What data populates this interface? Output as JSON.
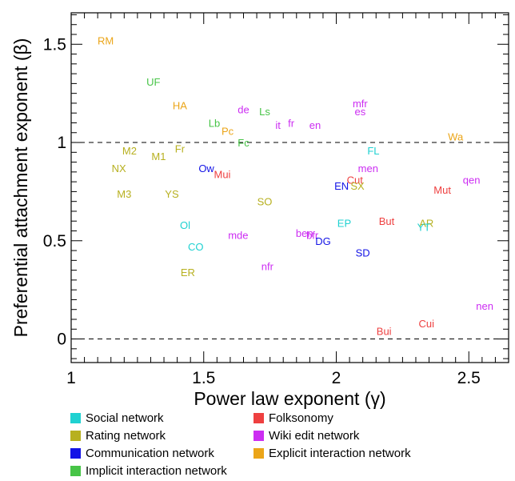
{
  "chart_data": {
    "type": "scatter",
    "xlabel": "Power law exponent (γ)",
    "ylabel": "Preferential attachment exponent (β)",
    "xlim": [
      1,
      2.65
    ],
    "ylim": [
      -0.12,
      1.66
    ],
    "xticks": [
      {
        "v": 1,
        "label": "1"
      },
      {
        "v": 1.5,
        "label": "1.5"
      },
      {
        "v": 2,
        "label": "2"
      },
      {
        "v": 2.5,
        "label": "2.5"
      }
    ],
    "yticks": [
      {
        "v": 0,
        "label": "0"
      },
      {
        "v": 0.5,
        "label": "0.5"
      },
      {
        "v": 1,
        "label": "1"
      },
      {
        "v": 1.5,
        "label": "1.5"
      }
    ],
    "reference_lines_y": [
      0,
      1
    ],
    "legend": {
      "placement": "bottom",
      "entries": [
        {
          "key": "social",
          "label": "Social network",
          "color": "#1fd1d1"
        },
        {
          "key": "folksonomy",
          "label": "Folksonomy",
          "color": "#ee4040"
        },
        {
          "key": "rating",
          "label": "Rating network",
          "color": "#b7b01f"
        },
        {
          "key": "wiki",
          "label": "Wiki edit network",
          "color": "#cc2df2"
        },
        {
          "key": "communication",
          "label": "Communication network",
          "color": "#1414e6"
        },
        {
          "key": "explicit",
          "label": "Explicit interaction network",
          "color": "#eba518"
        },
        {
          "key": "implicit",
          "label": "Implicit interaction network",
          "color": "#47c447"
        }
      ]
    },
    "points": [
      {
        "label": "RM",
        "x": 1.13,
        "y": 1.52,
        "cat": "explicit"
      },
      {
        "label": "UF",
        "x": 1.31,
        "y": 1.31,
        "cat": "implicit"
      },
      {
        "label": "HA",
        "x": 1.41,
        "y": 1.19,
        "cat": "explicit"
      },
      {
        "label": "de",
        "x": 1.65,
        "y": 1.17,
        "cat": "wiki"
      },
      {
        "label": "Ls",
        "x": 1.73,
        "y": 1.16,
        "cat": "implicit"
      },
      {
        "label": "Lb",
        "x": 1.54,
        "y": 1.1,
        "cat": "implicit"
      },
      {
        "label": "Pc",
        "x": 1.59,
        "y": 1.06,
        "cat": "explicit"
      },
      {
        "label": "it",
        "x": 1.78,
        "y": 1.09,
        "cat": "wiki"
      },
      {
        "label": "fr",
        "x": 1.83,
        "y": 1.1,
        "cat": "wiki"
      },
      {
        "label": "en",
        "x": 1.92,
        "y": 1.09,
        "cat": "wiki"
      },
      {
        "label": "mfr",
        "x": 2.09,
        "y": 1.2,
        "cat": "wiki"
      },
      {
        "label": "es",
        "x": 2.09,
        "y": 1.16,
        "cat": "wiki"
      },
      {
        "label": "Fc",
        "x": 1.65,
        "y": 1.0,
        "cat": "implicit"
      },
      {
        "label": "Wa",
        "x": 2.45,
        "y": 1.03,
        "cat": "explicit"
      },
      {
        "label": "M2",
        "x": 1.22,
        "y": 0.96,
        "cat": "rating"
      },
      {
        "label": "Fr",
        "x": 1.41,
        "y": 0.97,
        "cat": "rating"
      },
      {
        "label": "M1",
        "x": 1.33,
        "y": 0.93,
        "cat": "rating"
      },
      {
        "label": "FL",
        "x": 2.14,
        "y": 0.96,
        "cat": "social"
      },
      {
        "label": "NX",
        "x": 1.18,
        "y": 0.87,
        "cat": "rating"
      },
      {
        "label": "Ow",
        "x": 1.51,
        "y": 0.87,
        "cat": "communication"
      },
      {
        "label": "Mui",
        "x": 1.57,
        "y": 0.84,
        "cat": "folksonomy"
      },
      {
        "label": "men",
        "x": 2.12,
        "y": 0.87,
        "cat": "wiki"
      },
      {
        "label": "Cut",
        "x": 2.07,
        "y": 0.81,
        "cat": "folksonomy"
      },
      {
        "label": "EN",
        "x": 2.02,
        "y": 0.78,
        "cat": "communication"
      },
      {
        "label": "SX",
        "x": 2.08,
        "y": 0.78,
        "cat": "rating"
      },
      {
        "label": "qen",
        "x": 2.51,
        "y": 0.81,
        "cat": "wiki"
      },
      {
        "label": "M3",
        "x": 1.2,
        "y": 0.74,
        "cat": "rating"
      },
      {
        "label": "YS",
        "x": 1.38,
        "y": 0.74,
        "cat": "rating"
      },
      {
        "label": "SO",
        "x": 1.73,
        "y": 0.7,
        "cat": "rating"
      },
      {
        "label": "Mut",
        "x": 2.4,
        "y": 0.76,
        "cat": "folksonomy"
      },
      {
        "label": "Ol",
        "x": 1.43,
        "y": 0.58,
        "cat": "social"
      },
      {
        "label": "EP",
        "x": 2.03,
        "y": 0.59,
        "cat": "social"
      },
      {
        "label": "But",
        "x": 2.19,
        "y": 0.6,
        "cat": "folksonomy"
      },
      {
        "label": "AR",
        "x": 2.34,
        "y": 0.59,
        "cat": "rating"
      },
      {
        "label": "YT",
        "x": 2.33,
        "y": 0.57,
        "cat": "social"
      },
      {
        "label": "mde",
        "x": 1.63,
        "y": 0.53,
        "cat": "wiki"
      },
      {
        "label": "ben",
        "x": 1.88,
        "y": 0.54,
        "cat": "wiki"
      },
      {
        "label": "bfr",
        "x": 1.91,
        "y": 0.53,
        "cat": "wiki"
      },
      {
        "label": "DG",
        "x": 1.95,
        "y": 0.5,
        "cat": "communication"
      },
      {
        "label": "CO",
        "x": 1.47,
        "y": 0.47,
        "cat": "social"
      },
      {
        "label": "SD",
        "x": 2.1,
        "y": 0.44,
        "cat": "communication"
      },
      {
        "label": "nfr",
        "x": 1.74,
        "y": 0.37,
        "cat": "wiki"
      },
      {
        "label": "ER",
        "x": 1.44,
        "y": 0.34,
        "cat": "rating"
      },
      {
        "label": "nen",
        "x": 2.56,
        "y": 0.17,
        "cat": "wiki"
      },
      {
        "label": "Cui",
        "x": 2.34,
        "y": 0.08,
        "cat": "folksonomy"
      },
      {
        "label": "Bui",
        "x": 2.18,
        "y": 0.04,
        "cat": "folksonomy"
      }
    ]
  }
}
